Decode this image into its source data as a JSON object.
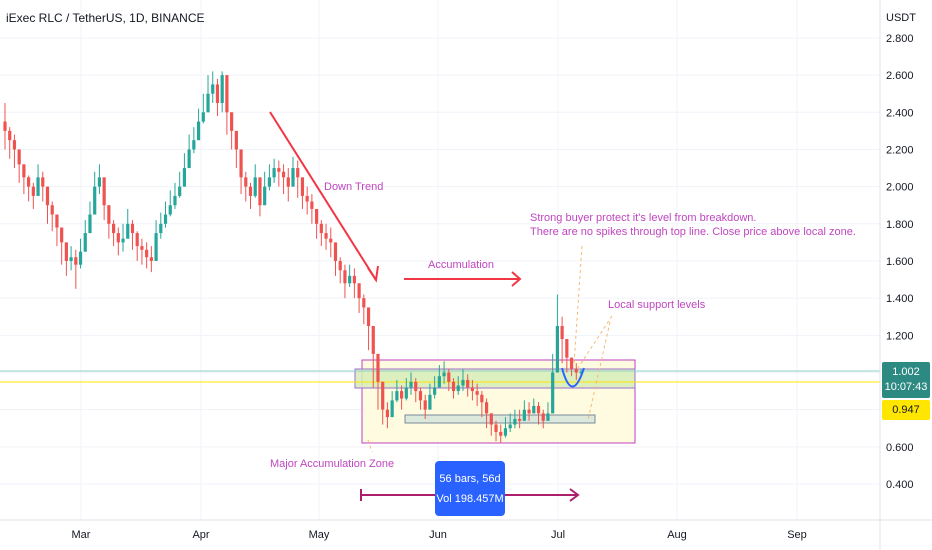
{
  "header": {
    "title": "iExec RLC / TetherUS, 1D, BINANCE"
  },
  "price_tag": {
    "value": "1.002",
    "countdown": "10:07:43",
    "color": "#2d8a82"
  },
  "level_tag": {
    "value": "0.947",
    "color": "#ffe600"
  },
  "measure_box": {
    "bars": "56 bars, 56d",
    "vol": "Vol 198.457M"
  },
  "annotations": {
    "down_trend": "Down Trend",
    "accumulation": "Accumulation",
    "buyer_line1": "Strong buyer protect it's level from breakdown.",
    "buyer_line2": "There are no spikes through top line.  Close price above local zone.",
    "local_support": "Local support levels",
    "major_zone": "Major Accumulation Zone"
  },
  "chart_data": {
    "type": "candlestick",
    "title": "iExec RLC / TetherUS, 1D, BINANCE",
    "y_unit": "USDT",
    "ylim": [
      0.2,
      2.95
    ],
    "y_ticks": [
      "0.400",
      "0.600",
      "0.800",
      "1.000",
      "1.200",
      "1.400",
      "1.600",
      "1.800",
      "2.000",
      "2.200",
      "2.400",
      "2.600",
      "2.800"
    ],
    "x_ticks": [
      "Mar",
      "Apr",
      "May",
      "Jun",
      "Jul",
      "Aug",
      "Sep"
    ],
    "up_color": "#26a69a",
    "down_color": "#ef5350",
    "closes": [
      2.3,
      2.25,
      2.2,
      2.12,
      2.05,
      2.0,
      1.95,
      2.05,
      2.0,
      1.9,
      1.85,
      1.78,
      1.7,
      1.6,
      1.62,
      1.58,
      1.65,
      1.75,
      1.85,
      2.0,
      2.05,
      1.9,
      1.8,
      1.75,
      1.7,
      1.72,
      1.8,
      1.75,
      1.68,
      1.66,
      1.62,
      1.6,
      1.75,
      1.8,
      1.85,
      1.9,
      1.95,
      2.0,
      2.1,
      2.2,
      2.25,
      2.35,
      2.4,
      2.5,
      2.55,
      2.45,
      2.6,
      2.4,
      2.3,
      2.2,
      2.05,
      2.0,
      1.95,
      2.05,
      1.9,
      2.0,
      2.05,
      2.1,
      2.08,
      2.05,
      2.0,
      2.1,
      2.05,
      1.95,
      1.92,
      1.88,
      1.8,
      1.75,
      1.72,
      1.7,
      1.6,
      1.55,
      1.48,
      1.52,
      1.48,
      1.4,
      1.35,
      1.25,
      1.1,
      0.95,
      0.8,
      0.76,
      0.85,
      0.9,
      0.86,
      0.92,
      0.95,
      0.9,
      0.85,
      0.8,
      0.88,
      0.92,
      0.98,
      1.0,
      0.95,
      0.9,
      0.93,
      0.96,
      0.92,
      0.9,
      0.88,
      0.84,
      0.78,
      0.72,
      0.68,
      0.66,
      0.7,
      0.72,
      0.75,
      0.74,
      0.8,
      0.78,
      0.82,
      0.78,
      0.74,
      0.78,
      1.0,
      1.25,
      1.18,
      1.08,
      1.02,
      1.0,
      1.002
    ],
    "highs": [
      2.45,
      2.32,
      2.28,
      2.2,
      2.12,
      2.06,
      2.02,
      2.12,
      2.08,
      1.98,
      1.92,
      1.85,
      1.78,
      1.7,
      1.68,
      1.66,
      1.72,
      1.82,
      1.92,
      2.08,
      2.12,
      2.0,
      1.88,
      1.82,
      1.78,
      1.8,
      1.88,
      1.82,
      1.76,
      1.72,
      1.7,
      1.68,
      1.82,
      1.86,
      1.92,
      1.98,
      2.02,
      2.08,
      2.18,
      2.28,
      2.32,
      2.42,
      2.5,
      2.6,
      2.62,
      2.58,
      2.62,
      2.55,
      2.4,
      2.3,
      2.15,
      2.08,
      2.02,
      2.12,
      2.02,
      2.08,
      2.12,
      2.15,
      2.14,
      2.12,
      2.1,
      2.16,
      2.14,
      2.05,
      2.0,
      1.96,
      1.88,
      1.82,
      1.8,
      1.78,
      1.7,
      1.62,
      1.58,
      1.58,
      1.56,
      1.48,
      1.42,
      1.35,
      1.22,
      1.05,
      0.9,
      0.84,
      0.9,
      0.96,
      0.93,
      0.97,
      1.0,
      0.97,
      0.92,
      0.88,
      0.94,
      0.98,
      1.04,
      1.06,
      1.02,
      0.97,
      0.98,
      1.02,
      0.99,
      0.96,
      0.94,
      0.9,
      0.86,
      0.78,
      0.74,
      0.72,
      0.76,
      0.78,
      0.8,
      0.8,
      0.85,
      0.84,
      0.86,
      0.84,
      0.8,
      0.84,
      1.1,
      1.42,
      1.3,
      1.16,
      1.08,
      1.05,
      1.02
    ],
    "lows": [
      2.2,
      2.15,
      2.1,
      2.02,
      1.96,
      1.92,
      1.88,
      1.95,
      1.92,
      1.8,
      1.76,
      1.68,
      1.58,
      1.52,
      1.55,
      1.45,
      1.56,
      1.68,
      1.78,
      1.9,
      1.96,
      1.82,
      1.72,
      1.68,
      1.63,
      1.65,
      1.72,
      1.66,
      1.6,
      1.58,
      1.56,
      1.54,
      1.62,
      1.72,
      1.78,
      1.84,
      1.88,
      1.94,
      2.02,
      2.12,
      2.18,
      2.28,
      2.34,
      2.4,
      2.45,
      2.38,
      2.4,
      2.28,
      2.2,
      2.1,
      1.96,
      1.92,
      1.88,
      1.94,
      1.84,
      1.9,
      1.98,
      2.02,
      2.0,
      1.96,
      1.92,
      2.0,
      1.94,
      1.88,
      1.85,
      1.8,
      1.72,
      1.68,
      1.66,
      1.62,
      1.52,
      1.48,
      1.4,
      1.46,
      1.4,
      1.32,
      1.26,
      1.12,
      0.92,
      0.8,
      0.72,
      0.7,
      0.76,
      0.84,
      0.8,
      0.85,
      0.88,
      0.84,
      0.8,
      0.75,
      0.82,
      0.86,
      0.92,
      0.94,
      0.9,
      0.86,
      0.88,
      0.9,
      0.87,
      0.85,
      0.82,
      0.76,
      0.7,
      0.66,
      0.63,
      0.62,
      0.65,
      0.68,
      0.7,
      0.7,
      0.75,
      0.74,
      0.78,
      0.72,
      0.7,
      0.74,
      0.92,
      1.15,
      1.05,
      1.0,
      0.98,
      0.96,
      0.97
    ]
  }
}
